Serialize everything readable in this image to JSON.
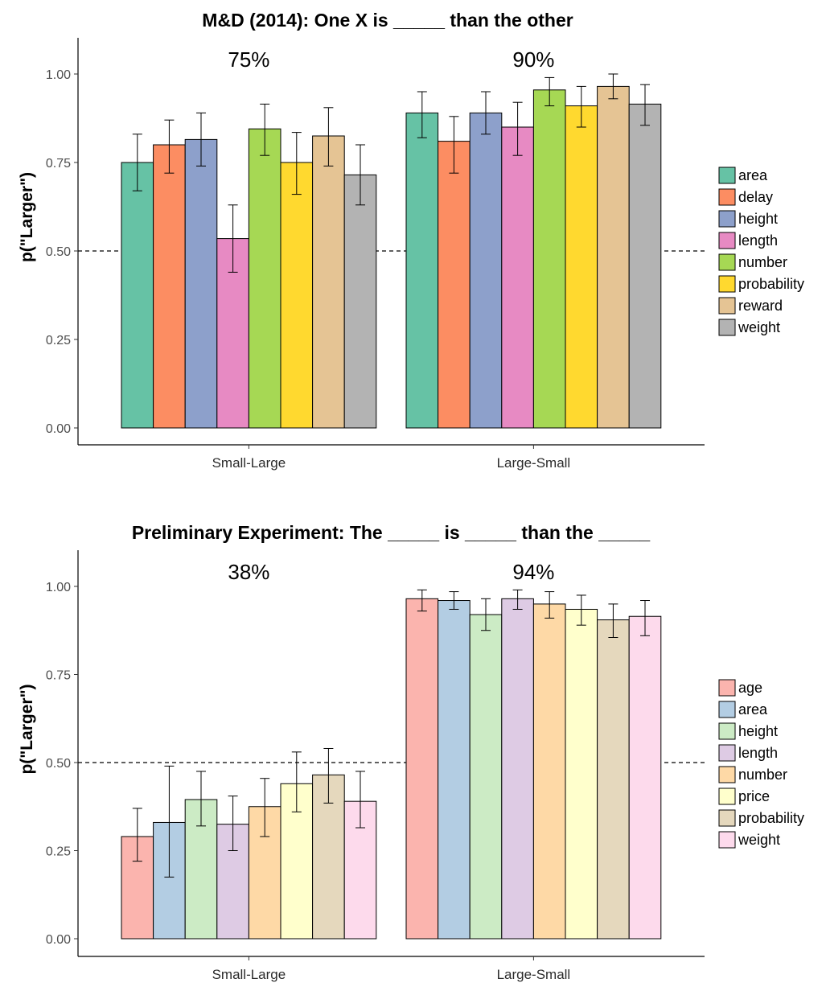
{
  "chart_data": [
    {
      "type": "bar",
      "title": "M&D (2014): One X is _____ than the other",
      "ylabel": "p(\"Larger\")",
      "xlabel": "",
      "ylim": [
        0,
        1.1
      ],
      "yticks": [
        "0.00",
        "0.25",
        "0.50",
        "0.75",
        "1.00"
      ],
      "reference_line": 0.5,
      "grid": false,
      "legend_position": "right",
      "categories": [
        "Small-Large",
        "Large-Small"
      ],
      "annotations": [
        "75%",
        "90%"
      ],
      "series": [
        {
          "name": "area",
          "color": "#66c2a5",
          "values": [
            0.75,
            0.89
          ],
          "lower": [
            0.67,
            0.82
          ],
          "upper": [
            0.83,
            0.95
          ]
        },
        {
          "name": "delay",
          "color": "#fc8d62",
          "values": [
            0.8,
            0.81
          ],
          "lower": [
            0.72,
            0.72
          ],
          "upper": [
            0.87,
            0.88
          ]
        },
        {
          "name": "height",
          "color": "#8da0cb",
          "values": [
            0.815,
            0.89
          ],
          "lower": [
            0.74,
            0.83
          ],
          "upper": [
            0.89,
            0.95
          ]
        },
        {
          "name": "length",
          "color": "#e78ac3",
          "values": [
            0.535,
            0.85
          ],
          "lower": [
            0.44,
            0.77
          ],
          "upper": [
            0.63,
            0.92
          ]
        },
        {
          "name": "number",
          "color": "#a6d854",
          "values": [
            0.845,
            0.955
          ],
          "lower": [
            0.77,
            0.91
          ],
          "upper": [
            0.915,
            0.99
          ]
        },
        {
          "name": "probability",
          "color": "#ffd92f",
          "values": [
            0.75,
            0.91
          ],
          "lower": [
            0.66,
            0.85
          ],
          "upper": [
            0.835,
            0.965
          ]
        },
        {
          "name": "reward",
          "color": "#e5c494",
          "values": [
            0.825,
            0.965
          ],
          "lower": [
            0.74,
            0.93
          ],
          "upper": [
            0.905,
            1.0
          ]
        },
        {
          "name": "weight",
          "color": "#b3b3b3",
          "values": [
            0.715,
            0.915
          ],
          "lower": [
            0.63,
            0.855
          ],
          "upper": [
            0.8,
            0.97
          ]
        }
      ]
    },
    {
      "type": "bar",
      "title": "Preliminary Experiment: The _____ is _____ than the _____",
      "ylabel": "p(\"Larger\")",
      "xlabel": "",
      "ylim": [
        0,
        1.1
      ],
      "yticks": [
        "0.00",
        "0.25",
        "0.50",
        "0.75",
        "1.00"
      ],
      "reference_line": 0.5,
      "grid": false,
      "legend_position": "right",
      "categories": [
        "Small-Large",
        "Large-Small"
      ],
      "annotations": [
        "38%",
        "94%"
      ],
      "series": [
        {
          "name": "age",
          "color": "#fbb4ae",
          "values": [
            0.29,
            0.965
          ],
          "lower": [
            0.22,
            0.93
          ],
          "upper": [
            0.37,
            0.99
          ]
        },
        {
          "name": "area",
          "color": "#b3cde3",
          "values": [
            0.33,
            0.96
          ],
          "lower": [
            0.175,
            0.935
          ],
          "upper": [
            0.49,
            0.985
          ]
        },
        {
          "name": "height",
          "color": "#ccebc5",
          "values": [
            0.395,
            0.92
          ],
          "lower": [
            0.32,
            0.875
          ],
          "upper": [
            0.475,
            0.965
          ]
        },
        {
          "name": "length",
          "color": "#decbe4",
          "values": [
            0.325,
            0.965
          ],
          "lower": [
            0.25,
            0.935
          ],
          "upper": [
            0.405,
            0.99
          ]
        },
        {
          "name": "number",
          "color": "#fed9a6",
          "values": [
            0.375,
            0.95
          ],
          "lower": [
            0.29,
            0.91
          ],
          "upper": [
            0.455,
            0.985
          ]
        },
        {
          "name": "price",
          "color": "#ffffcc",
          "values": [
            0.44,
            0.935
          ],
          "lower": [
            0.36,
            0.89
          ],
          "upper": [
            0.53,
            0.975
          ]
        },
        {
          "name": "probability",
          "color": "#e5d8bd",
          "values": [
            0.465,
            0.905
          ],
          "lower": [
            0.385,
            0.855
          ],
          "upper": [
            0.54,
            0.95
          ]
        },
        {
          "name": "weight",
          "color": "#fddaec",
          "values": [
            0.39,
            0.915
          ],
          "lower": [
            0.315,
            0.86
          ],
          "upper": [
            0.475,
            0.96
          ]
        }
      ]
    }
  ]
}
